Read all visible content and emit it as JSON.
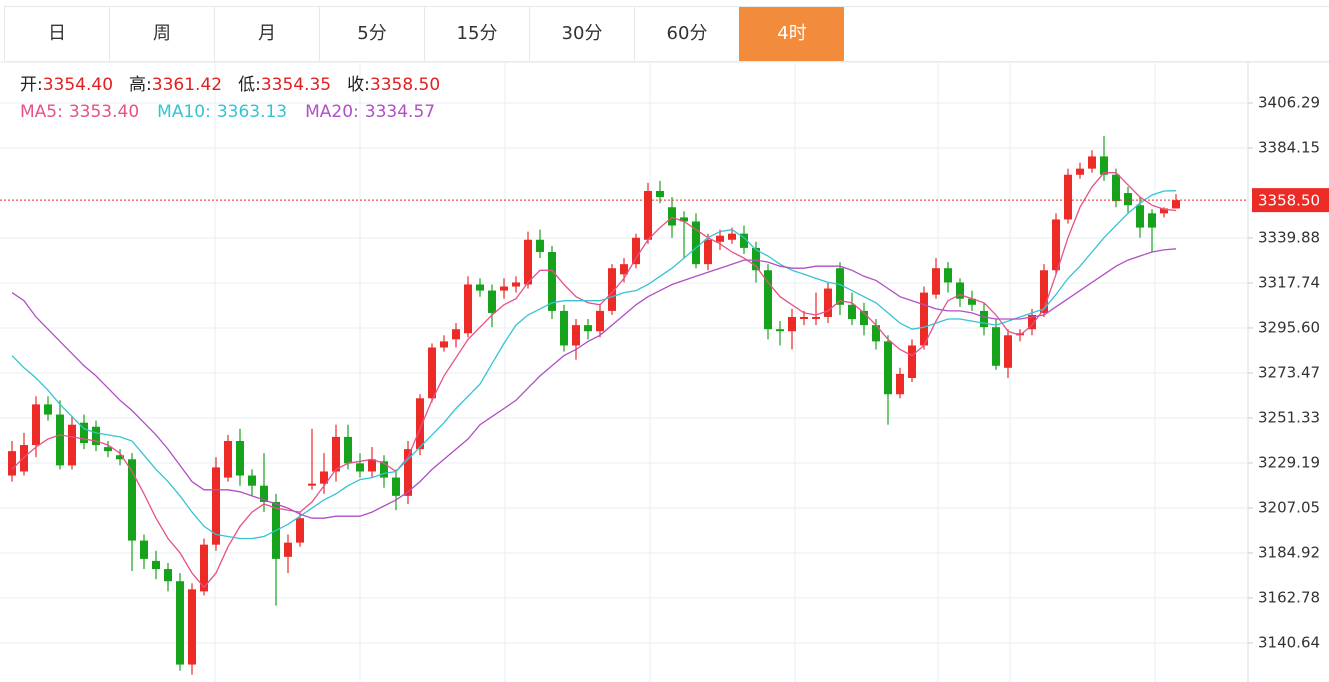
{
  "tabs": {
    "items": [
      "日",
      "周",
      "月",
      "5分",
      "15分",
      "30分",
      "60分",
      "4时"
    ],
    "active": 7
  },
  "chart_data": {
    "type": "candlestick",
    "ylim": [
      3121.42,
      3426.46
    ],
    "yticks": [
      3406.29,
      3384.15,
      3339.88,
      3317.74,
      {
        "value": 3295.6,
        "label": "3295.60"
      },
      3273.47,
      3251.33,
      3229.19,
      3207.05,
      3184.92,
      3162.78,
      3140.64
    ],
    "grid": true,
    "up_color": "#ec2a26",
    "down_color": "#16a21a",
    "info": [
      {
        "label": "开:",
        "value": 3354.4,
        "value_label": "3354.40"
      },
      {
        "label": "高:",
        "value": 3361.42,
        "value_label": "3361.42"
      },
      {
        "label": "低:",
        "value": 3354.35,
        "value_label": "3354.35"
      },
      {
        "label": "收:",
        "value": 3358.5,
        "value_label": "3358.50"
      }
    ],
    "last_price": {
      "value": 3358.5,
      "label": "3358.50"
    },
    "open": [
      3223,
      3225,
      3238,
      3258,
      3253,
      3228,
      3249,
      3247,
      3237,
      3233,
      3231,
      3191,
      3181,
      3177,
      3171,
      3130,
      3166,
      3189,
      3222,
      3240,
      3223,
      3218,
      3210,
      3183,
      3190,
      3218,
      3219,
      3225,
      3242,
      3229,
      3225,
      3230,
      3222,
      3213,
      3236,
      3261,
      3286,
      3290,
      3293,
      3317,
      3314,
      3314,
      3316,
      3317,
      3339,
      3333,
      3304,
      3287,
      3297,
      3294,
      3304,
      3322,
      3327,
      3339,
      3363,
      3355,
      3350,
      3348,
      3327,
      3338,
      3339,
      3342,
      3335,
      3324,
      3295,
      3294,
      3300,
      3300,
      3301,
      3325,
      3307,
      3304,
      3297,
      3289,
      3263,
      3271,
      3287,
      3312,
      3325,
      3318,
      3310,
      3304,
      3296,
      3276,
      3292,
      3295,
      3303,
      3324,
      3349,
      3371,
      3374,
      3380,
      3371,
      3362,
      3356,
      3352,
      3352,
      3354.4
    ],
    "high": [
      3240,
      3244,
      3262,
      3262,
      3260,
      3252,
      3253,
      3250,
      3240,
      3236,
      3234,
      3194,
      3186,
      3180,
      3175,
      3170,
      3192,
      3232,
      3243,
      3246,
      3226,
      3234,
      3214,
      3194,
      3205,
      3246,
      3234,
      3248,
      3248,
      3234,
      3237,
      3233,
      3226,
      3240,
      3263,
      3288,
      3292,
      3298,
      3321,
      3320,
      3317,
      3320,
      3321,
      3343,
      3344,
      3336,
      3307,
      3300,
      3300,
      3307,
      3327,
      3330,
      3342,
      3367,
      3368,
      3360,
      3353,
      3352,
      3342,
      3344,
      3345,
      3346,
      3338,
      3327,
      3299,
      3305,
      3304,
      3313,
      3318,
      3328,
      3313,
      3308,
      3300,
      3292,
      3276,
      3290,
      3316,
      3330,
      3328,
      3320,
      3314,
      3308,
      3300,
      3295,
      3295,
      3305,
      3327,
      3352,
      3374,
      3377,
      3383,
      3390,
      3374,
      3365,
      3360,
      3354,
      3355,
      3361.42
    ],
    "low": [
      3220,
      3223,
      3232,
      3250,
      3226,
      3226,
      3236,
      3235,
      3232,
      3228,
      3176,
      3177,
      3172,
      3166,
      3127,
      3125,
      3164,
      3186,
      3220,
      3218,
      3213,
      3205,
      3159,
      3175,
      3188,
      3216,
      3214,
      3220,
      3226,
      3222,
      3222,
      3217,
      3206,
      3209,
      3233,
      3259,
      3284,
      3286,
      3291,
      3311,
      3296,
      3310,
      3313,
      3315,
      3330,
      3300,
      3284,
      3280,
      3290,
      3291,
      3302,
      3318,
      3325,
      3337,
      3357,
      3340,
      3330,
      3325,
      3324,
      3334,
      3337,
      3332,
      3318,
      3290,
      3287,
      3285,
      3297,
      3297,
      3298,
      3302,
      3297,
      3292,
      3285,
      3248,
      3261,
      3269,
      3285,
      3310,
      3313,
      3306,
      3304,
      3292,
      3275,
      3271,
      3289,
      3292,
      3301,
      3322,
      3347,
      3369,
      3372,
      3368,
      3355,
      3352,
      3340,
      3333,
      3350,
      3354.35
    ],
    "close": [
      3235,
      3238,
      3258,
      3253,
      3228,
      3248,
      3239,
      3238,
      3235,
      3231,
      3191,
      3182,
      3177,
      3171,
      3130,
      3167,
      3189,
      3227,
      3240,
      3223,
      3218,
      3210,
      3182,
      3190,
      3202,
      3219,
      3225,
      3242,
      3229,
      3225,
      3231,
      3222,
      3213,
      3236,
      3261,
      3286,
      3289,
      3295,
      3317,
      3314,
      3303,
      3316,
      3318,
      3339,
      3333,
      3304,
      3287,
      3297,
      3294,
      3304,
      3325,
      3327,
      3340,
      3363,
      3360,
      3346,
      3348,
      3327,
      3339,
      3341,
      3342,
      3335,
      3324,
      3295,
      3294,
      3301,
      3301,
      3301,
      3315,
      3307,
      3300,
      3297,
      3289,
      3263,
      3273,
      3287,
      3313,
      3325,
      3318,
      3310,
      3307,
      3296,
      3277,
      3292,
      3293,
      3302,
      3324,
      3349,
      3371,
      3374,
      3380,
      3371,
      3358,
      3356,
      3345,
      3345,
      3354.4,
      3358.5
    ],
    "series": [
      {
        "name": "MA5:",
        "color": "#e8508a",
        "current": {
          "value": 3353.4,
          "label": "3353.40"
        },
        "values": [
          3226,
          3232,
          3237,
          3241,
          3243,
          3242,
          3241,
          3240,
          3238,
          3234,
          3225,
          3214,
          3202,
          3192,
          3185,
          3175,
          3168,
          3175,
          3188,
          3198,
          3205,
          3209,
          3207,
          3206,
          3205,
          3210,
          3218,
          3226,
          3229,
          3230,
          3231,
          3229,
          3225,
          3232,
          3246,
          3260,
          3272,
          3281,
          3290,
          3296,
          3302,
          3307,
          3310,
          3318,
          3324,
          3324,
          3317,
          3311,
          3308,
          3307,
          3313,
          3320,
          3330,
          3339,
          3345,
          3350,
          3348,
          3344,
          3340,
          3337,
          3333,
          3330,
          3326,
          3318,
          3311,
          3307,
          3303,
          3302,
          3304,
          3309,
          3308,
          3303,
          3297,
          3290,
          3285,
          3282,
          3287,
          3299,
          3309,
          3312,
          3310,
          3308,
          3302,
          3294,
          3292,
          3297,
          3305,
          3322,
          3340,
          3355,
          3365,
          3372,
          3372,
          3366,
          3360,
          3356,
          3354,
          3353.4
        ]
      },
      {
        "name": "MA10:",
        "color": "#35c3d3",
        "current": {
          "value": 3363.13,
          "label": "3363.13"
        },
        "values": [
          3282,
          3276,
          3271,
          3265,
          3258,
          3252,
          3246,
          3244,
          3243,
          3242,
          3240,
          3233,
          3226,
          3220,
          3213,
          3205,
          3198,
          3194,
          3193,
          3192,
          3192,
          3193,
          3196,
          3199,
          3203,
          3207,
          3211,
          3214,
          3218,
          3221,
          3222,
          3224,
          3225,
          3231,
          3237,
          3243,
          3249,
          3256,
          3262,
          3268,
          3278,
          3288,
          3297,
          3302,
          3305,
          3308,
          3309,
          3309,
          3309,
          3309,
          3311,
          3313,
          3314,
          3317,
          3321,
          3325,
          3330,
          3335,
          3340,
          3343,
          3344,
          3340,
          3334,
          3331,
          3327,
          3324,
          3322,
          3320,
          3318,
          3317,
          3314,
          3311,
          3308,
          3303,
          3298,
          3295,
          3296,
          3298,
          3300,
          3300,
          3299,
          3298,
          3297,
          3299,
          3301,
          3303,
          3305,
          3312,
          3320,
          3326,
          3333,
          3340,
          3346,
          3352,
          3357,
          3361,
          3363,
          3363.13
        ]
      },
      {
        "name": "MA20:",
        "color": "#b04fc6",
        "current": {
          "value": 3334.57,
          "label": "3334.57"
        },
        "values": [
          3313,
          3309,
          3301,
          3295,
          3289,
          3283,
          3277,
          3272,
          3266,
          3260,
          3255,
          3249,
          3243,
          3236,
          3228,
          3220,
          3216,
          3216,
          3216,
          3215,
          3213,
          3211,
          3209,
          3207,
          3204,
          3202,
          3202,
          3203,
          3203,
          3203,
          3205,
          3208,
          3211,
          3215,
          3220,
          3226,
          3231,
          3236,
          3241,
          3248,
          3252,
          3256,
          3260,
          3266,
          3272,
          3277,
          3282,
          3285,
          3289,
          3292,
          3297,
          3302,
          3307,
          3311,
          3314,
          3317,
          3319,
          3321,
          3323,
          3325,
          3327,
          3329,
          3329,
          3328,
          3326,
          3325,
          3325,
          3326,
          3326,
          3326,
          3324,
          3321,
          3319,
          3315,
          3311,
          3309,
          3307,
          3305,
          3304,
          3304,
          3303,
          3301,
          3300,
          3300,
          3300,
          3301,
          3302,
          3306,
          3310,
          3314,
          3318,
          3322,
          3326,
          3329,
          3331,
          3333,
          3334,
          3334.57
        ]
      }
    ]
  }
}
